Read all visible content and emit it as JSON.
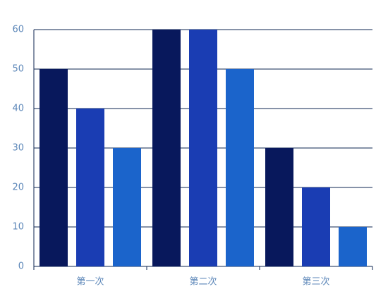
{
  "chart_data": {
    "type": "bar",
    "categories": [
      "第一次",
      "第二次",
      "第三次"
    ],
    "series": [
      {
        "color": "#08185c",
        "values": [
          50,
          60,
          30
        ]
      },
      {
        "color": "#1a3db3",
        "values": [
          40,
          60,
          20
        ]
      },
      {
        "color": "#1b64cb",
        "values": [
          30,
          50,
          10
        ]
      }
    ],
    "ylim": [
      0,
      60
    ],
    "yticks": [
      0,
      10,
      20,
      30,
      40,
      50,
      60
    ],
    "grid": true
  }
}
